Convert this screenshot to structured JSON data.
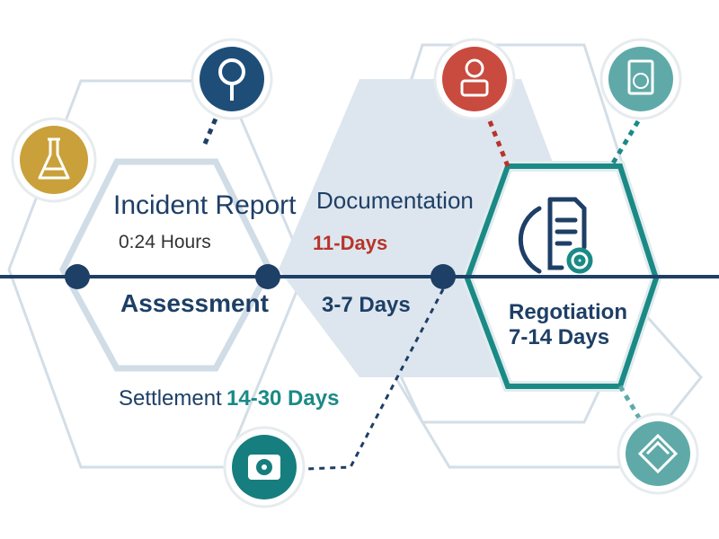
{
  "stages": [
    {
      "title": "Incident Report",
      "duration": "0:24 Hours"
    },
    {
      "title": "Documentation",
      "duration": "11-Days"
    },
    {
      "title": "Assessment",
      "duration": "3-7 Days"
    },
    {
      "title": "Regotiation",
      "duration": "7-14 Days"
    },
    {
      "title": "Settlement",
      "duration": "14-30 Days"
    }
  ],
  "icons": [
    {
      "name": "flask-icon",
      "color": "#C9A03A"
    },
    {
      "name": "magnifier-icon",
      "color": "#1E4E78"
    },
    {
      "name": "user-badge-icon",
      "color": "#C94A3E"
    },
    {
      "name": "clipboard-globe-icon",
      "color": "#5FAAA8"
    },
    {
      "name": "camera-gear-icon",
      "color": "#167E7E"
    },
    {
      "name": "handshake-icon",
      "color": "#5FAAA8"
    }
  ],
  "colors": {
    "navy": "#1E3F66",
    "teal": "#1B8A86",
    "red": "#B8342B",
    "hex_fill": "#DDE6EE"
  }
}
